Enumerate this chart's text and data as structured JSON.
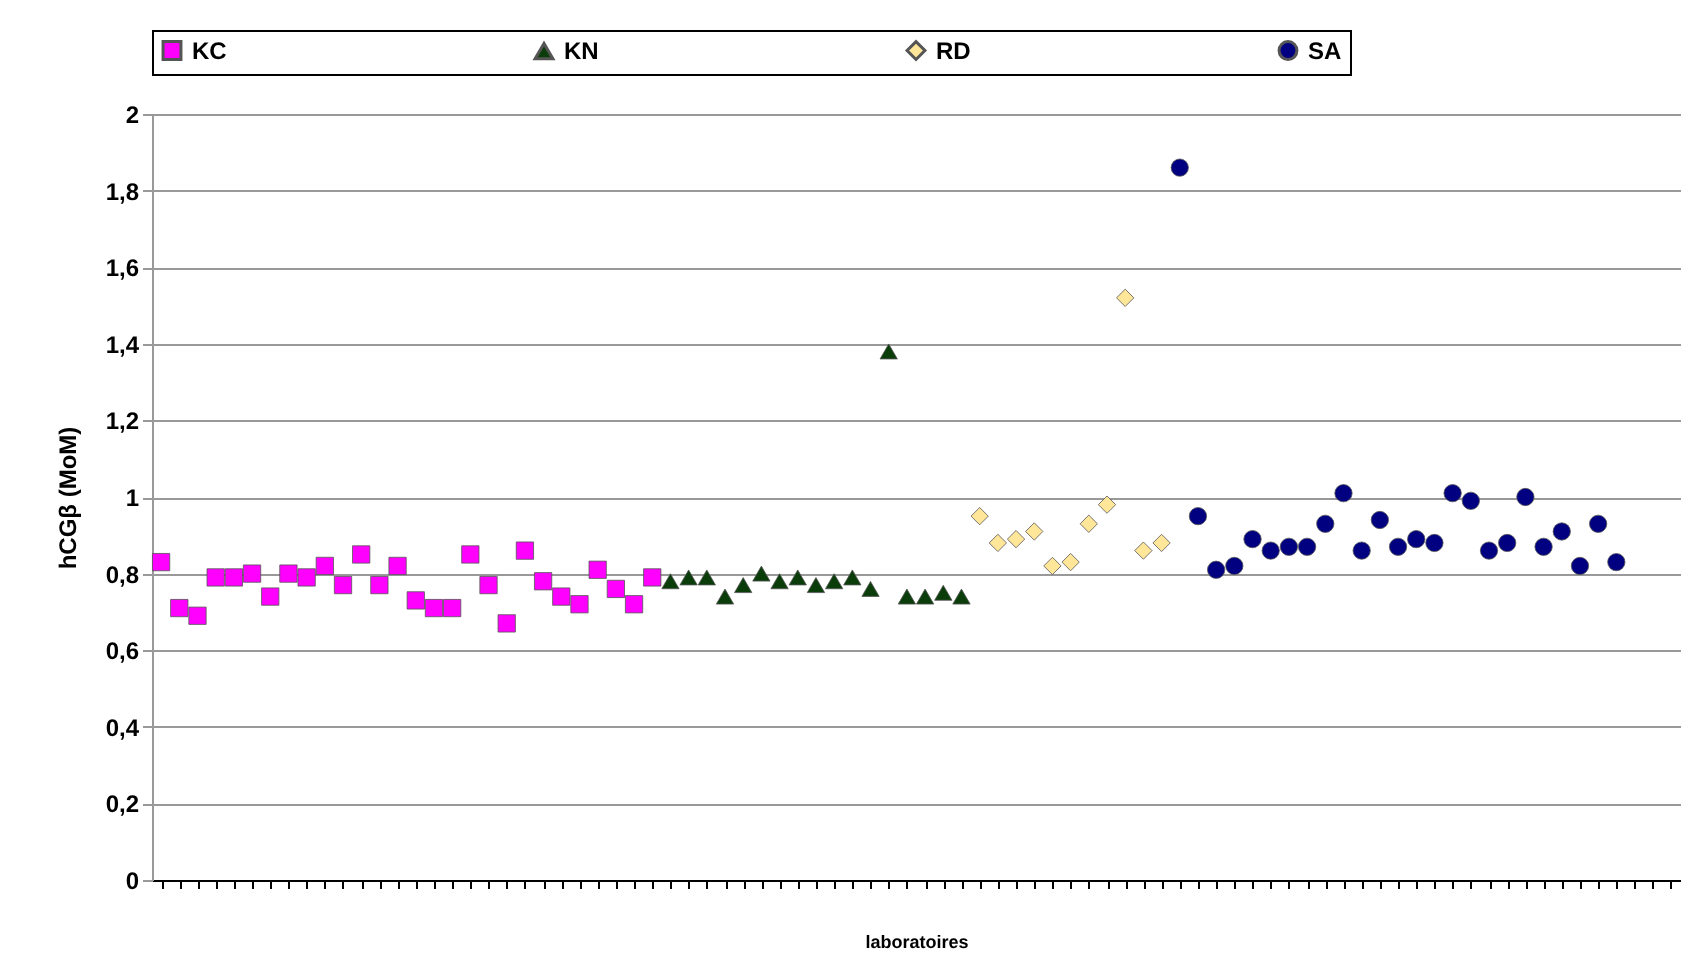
{
  "chart_data": {
    "type": "scatter",
    "xlabel": "laboratoires",
    "ylabel": "hCGβ (MoM)",
    "categories": [
      null,
      null,
      null,
      null,
      null,
      null,
      null,
      null,
      null,
      null,
      null,
      null,
      null,
      null,
      null,
      null,
      null,
      null,
      null,
      null,
      null,
      null,
      null,
      null,
      null,
      null,
      null,
      null,
      null,
      null,
      null,
      null,
      null,
      null,
      null,
      null,
      null,
      null,
      null,
      null,
      null,
      null,
      null,
      null,
      null,
      null,
      null,
      null,
      null,
      null,
      null,
      null,
      null,
      null,
      null,
      null,
      null,
      null,
      null,
      null,
      null,
      null,
      null,
      null,
      null,
      null,
      null,
      null,
      null,
      null,
      null,
      null,
      null,
      null,
      null,
      null,
      null,
      null,
      null,
      null,
      null,
      null,
      null,
      null
    ],
    "series": [
      {
        "name": "KC",
        "color": "#ff00ff",
        "marker": "square",
        "values": [
          0.83,
          0.71,
          0.69,
          0.79,
          0.79,
          0.8,
          0.74,
          0.8,
          0.79,
          0.82,
          0.77,
          0.85,
          0.77,
          0.82,
          0.73,
          0.71,
          0.71,
          0.85,
          0.77,
          0.67,
          0.86,
          0.78,
          0.74,
          0.72,
          0.81,
          0.76,
          0.72,
          0.79,
          null,
          null,
          null,
          null,
          null,
          null,
          null,
          null,
          null,
          null,
          null,
          null,
          null,
          null,
          null,
          null,
          null,
          null,
          null,
          null,
          null,
          null,
          null,
          null,
          null,
          null,
          null,
          null,
          null,
          null,
          null,
          null,
          null,
          null,
          null,
          null,
          null,
          null,
          null,
          null,
          null,
          null,
          null,
          null,
          null,
          null,
          null,
          null,
          null,
          null,
          null,
          null,
          null,
          null,
          null,
          null
        ]
      },
      {
        "name": "KN",
        "color": "#0b3d0b",
        "marker": "triangle",
        "values": [
          null,
          null,
          null,
          null,
          null,
          null,
          null,
          null,
          null,
          null,
          null,
          null,
          null,
          null,
          null,
          null,
          null,
          null,
          null,
          null,
          null,
          null,
          null,
          null,
          null,
          null,
          null,
          null,
          0.78,
          0.79,
          0.79,
          0.74,
          0.77,
          0.8,
          0.78,
          0.79,
          0.77,
          0.78,
          0.79,
          0.76,
          1.38,
          0.74,
          0.74,
          0.75,
          0.74,
          null,
          null,
          null,
          null,
          null,
          null,
          null,
          null,
          null,
          null,
          null,
          null,
          null,
          null,
          null,
          null,
          null,
          null,
          null,
          null,
          null,
          null,
          null,
          null,
          null,
          null,
          null,
          null,
          null,
          null,
          null,
          null,
          null,
          null,
          null,
          null,
          null,
          null,
          null
        ]
      },
      {
        "name": "RD",
        "color": "#ffe699",
        "marker": "diamond",
        "values": [
          null,
          null,
          null,
          null,
          null,
          null,
          null,
          null,
          null,
          null,
          null,
          null,
          null,
          null,
          null,
          null,
          null,
          null,
          null,
          null,
          null,
          null,
          null,
          null,
          null,
          null,
          null,
          null,
          null,
          null,
          null,
          null,
          null,
          null,
          null,
          null,
          null,
          null,
          null,
          null,
          null,
          null,
          null,
          null,
          null,
          0.95,
          0.88,
          0.89,
          0.91,
          0.82,
          0.83,
          0.93,
          0.98,
          1.52,
          0.86,
          0.88,
          null,
          null,
          null,
          null,
          null,
          null,
          null,
          null,
          null,
          null,
          null,
          null,
          null,
          null,
          null,
          null,
          null,
          null,
          null,
          null,
          null,
          null,
          null,
          null,
          null,
          null,
          null,
          null
        ]
      },
      {
        "name": "SA",
        "color": "#000080",
        "marker": "circle",
        "values": [
          null,
          null,
          null,
          null,
          null,
          null,
          null,
          null,
          null,
          null,
          null,
          null,
          null,
          null,
          null,
          null,
          null,
          null,
          null,
          null,
          null,
          null,
          null,
          null,
          null,
          null,
          null,
          null,
          null,
          null,
          null,
          null,
          null,
          null,
          null,
          null,
          null,
          null,
          null,
          null,
          null,
          null,
          null,
          null,
          null,
          null,
          null,
          null,
          null,
          null,
          null,
          null,
          null,
          null,
          null,
          null,
          1.86,
          0.95,
          0.81,
          0.82,
          0.89,
          0.86,
          0.87,
          0.87,
          0.93,
          1.01,
          0.86,
          0.94,
          0.87,
          0.89,
          0.88,
          1.01,
          0.99,
          0.86,
          0.88,
          1.0,
          0.87,
          0.91,
          0.82,
          0.93,
          0.83,
          null,
          null,
          null
        ]
      }
    ],
    "ylim": [
      0,
      2
    ],
    "yticks": [
      0,
      {
        "value": 0.2,
        "label": "0,2"
      },
      {
        "value": 0.4,
        "label": "0,4"
      },
      {
        "value": 0.6,
        "label": "0,6"
      },
      {
        "value": 0.8,
        "label": "0,8"
      },
      1,
      {
        "value": 1.2,
        "label": "1,2"
      },
      {
        "value": 1.4,
        "label": "1,4"
      },
      {
        "value": 1.6,
        "label": "1,6"
      },
      {
        "value": 1.8,
        "label": "1,8"
      },
      2
    ],
    "grid": "y",
    "legend": "top",
    "tick_labels": "y"
  }
}
